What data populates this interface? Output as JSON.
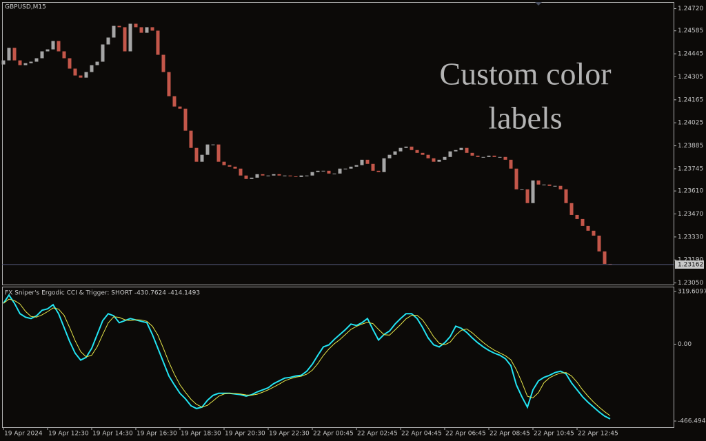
{
  "chart_data": [
    {
      "type": "candlestick",
      "title": "GBPUSD,M15",
      "annotation": [
        "Custom color",
        "labels"
      ],
      "up_color": "#a6a6a6",
      "down_color": "#c4574a",
      "categories": [
        "19 Apr 2024",
        null,
        null,
        null,
        null,
        null,
        null,
        null,
        "19 Apr 12:30",
        null,
        null,
        null,
        null,
        null,
        null,
        null,
        "19 Apr 14:30",
        null,
        null,
        null,
        null,
        null,
        null,
        null,
        "19 Apr 16:30",
        null,
        null,
        null,
        null,
        null,
        null,
        null,
        "19 Apr 18:30",
        null,
        null,
        null,
        null,
        null,
        null,
        null,
        "19 Apr 20:30",
        null,
        null,
        null,
        null,
        null,
        null,
        null,
        "19 Apr 22:30",
        null,
        null,
        null,
        null,
        null,
        null,
        null,
        "22 Apr 00:45",
        null,
        null,
        null,
        null,
        null,
        null,
        null,
        "22 Apr 02:45",
        null,
        null,
        null,
        null,
        null,
        null,
        null,
        "22 Apr 04:45",
        null,
        null,
        null,
        null,
        null,
        null,
        null,
        "22 Apr 06:45",
        null,
        null,
        null,
        null,
        null,
        null,
        null,
        "22 Apr 08:45",
        null,
        null,
        null,
        null,
        null,
        null,
        null,
        "22 Apr 10:45",
        null,
        null,
        null,
        null,
        null,
        null,
        null,
        "22 Apr 12:45",
        null,
        null,
        null,
        null,
        null,
        null
      ],
      "open": [
        1.2438,
        1.24405,
        1.24481,
        1.24405,
        1.24376,
        1.24388,
        1.24397,
        1.24418,
        1.2446,
        1.24472,
        1.24523,
        1.2446,
        1.24418,
        1.24355,
        1.24313,
        1.243,
        1.24334,
        1.24376,
        1.24397,
        1.24502,
        1.24544,
        1.24615,
        1.24607,
        1.2446,
        1.24628,
        1.24607,
        1.24573,
        1.24607,
        1.24586,
        1.24439,
        1.24334,
        1.24187,
        1.24124,
        1.24111,
        1.23977,
        1.23872,
        1.23788,
        1.2383,
        1.23893,
        1.23893,
        1.23788,
        1.23767,
        1.23758,
        1.23746,
        1.23704,
        1.23683,
        1.23691,
        1.23712,
        1.23704,
        1.23704,
        1.23712,
        1.23704,
        1.23704,
        1.23699,
        1.23695,
        1.23704,
        1.23704,
        1.23725,
        1.23733,
        1.23733,
        1.23716,
        1.23716,
        1.23746,
        1.23746,
        1.23758,
        1.23767,
        1.238,
        1.23775,
        1.23733,
        1.23725,
        1.23809,
        1.2383,
        1.23851,
        1.23872,
        1.2388,
        1.23859,
        1.23842,
        1.2383,
        1.23809,
        1.23788,
        1.238,
        1.23817,
        1.23851,
        1.23859,
        1.23872,
        1.23842,
        1.23825,
        1.23817,
        1.23817,
        1.23825,
        1.23817,
        1.23817,
        1.238,
        1.23746,
        1.2362,
        1.2362,
        1.23536,
        1.23674,
        1.23649,
        1.23649,
        1.23641,
        1.23641,
        1.2362,
        1.23536,
        1.23464,
        1.23439,
        1.23397,
        1.23368,
        1.23338,
        1.23242,
        1.23166
      ],
      "close": [
        1.24405,
        1.24481,
        1.24405,
        1.24376,
        1.24388,
        1.24397,
        1.24418,
        1.2446,
        1.24472,
        1.24523,
        1.2446,
        1.24418,
        1.24355,
        1.24313,
        1.243,
        1.24334,
        1.24376,
        1.24397,
        1.24502,
        1.24544,
        1.24615,
        1.24607,
        1.2446,
        1.24628,
        1.24607,
        1.24573,
        1.24607,
        1.24586,
        1.24439,
        1.24334,
        1.24187,
        1.24124,
        1.24111,
        1.23977,
        1.23872,
        1.23788,
        1.2383,
        1.23893,
        1.23893,
        1.23788,
        1.23767,
        1.23758,
        1.23746,
        1.23704,
        1.23683,
        1.23691,
        1.23712,
        1.23704,
        1.23704,
        1.23712,
        1.23704,
        1.23704,
        1.23699,
        1.23695,
        1.23704,
        1.23704,
        1.23725,
        1.23733,
        1.23733,
        1.23716,
        1.23716,
        1.23746,
        1.23746,
        1.23758,
        1.23767,
        1.238,
        1.23775,
        1.23733,
        1.23725,
        1.23809,
        1.2383,
        1.23851,
        1.23872,
        1.2388,
        1.23859,
        1.23842,
        1.2383,
        1.23809,
        1.23788,
        1.238,
        1.23817,
        1.23851,
        1.23859,
        1.23872,
        1.23842,
        1.23825,
        1.23817,
        1.23817,
        1.23825,
        1.23817,
        1.23817,
        1.238,
        1.23746,
        1.2362,
        1.2362,
        1.23536,
        1.23674,
        1.23649,
        1.23649,
        1.23641,
        1.23641,
        1.2362,
        1.23536,
        1.23464,
        1.23439,
        1.23397,
        1.23368,
        1.23338,
        1.23242,
        1.23166,
        1.23162
      ],
      "current_price": 1.23162,
      "ylim": [
        1.2304,
        1.2476
      ],
      "yticks": [
        {
          "value": 1.2472,
          "label": "1.24720"
        },
        1.24585,
        1.24445,
        1.24305,
        1.24165,
        1.24025,
        1.23885,
        1.23745,
        {
          "value": 1.2361,
          "label": "1.23610"
        },
        {
          "value": 1.2347,
          "label": "1.23470"
        },
        {
          "value": 1.2333,
          "label": "1.23330"
        },
        {
          "value": 1.2319,
          "label": "1.23190"
        },
        {
          "value": 1.2305,
          "label": "1.23050"
        }
      ]
    },
    {
      "type": "line",
      "title": "FX Sniper's Ergodic CCI & Trigger: SHORT -430.7624 -414.1493",
      "series": [
        {
          "color": "#22e4f2",
          "values": [
            247.8,
            298.2,
            247.8,
            184.8,
            163.8,
            155.4,
            172.2,
            205.8,
            214.2,
            239.4,
            184.8,
            100.8,
            16.8,
            -54.6,
            -96.6,
            -79.8,
            -25.2,
            58.8,
            142.8,
            184.8,
            172.2,
            130.2,
            142.8,
            155.4,
            147,
            138.6,
            130.2,
            58.8,
            -25.2,
            -109.2,
            -193.2,
            -247.8,
            -298.2,
            -331.8,
            -373.8,
            -390.6,
            -382.2,
            -340.2,
            -310.8,
            -298.2,
            -298.2,
            -298.2,
            -302.4,
            -306.6,
            -315,
            -306.6,
            -289.8,
            -277.2,
            -264.6,
            -239.4,
            -222.6,
            -205.8,
            -201.6,
            -193.2,
            -189,
            -163.8,
            -121.8,
            -67.2,
            -16.8,
            -4.2,
            29.4,
            58.8,
            88.2,
            121.8,
            113.4,
            130.2,
            155.4,
            88.2,
            25.2,
            58.8,
            79.8,
            121.8,
            155.4,
            184.8,
            184.8,
            155.4,
            100.8,
            37.8,
            -4.2,
            -16.8,
            8.4,
            46.2,
            109.2,
            96.6,
            71.4,
            37.8,
            8.4,
            -16.8,
            -37.8,
            -54.6,
            -67.2,
            -88.2,
            -130.2,
            -247.8,
            -319.2,
            -382.2,
            -277.2,
            -222.6,
            -201.6,
            -189,
            -172.2,
            -163.8,
            -180.6,
            -235.2,
            -277.2,
            -319.2,
            -352.8,
            -382.2,
            -411.6,
            -436.8,
            -453.6
          ]
        },
        {
          "color": "#e6e64a",
          "values": [
            247.8,
            273,
            264.6,
            243.6,
            198.8,
            168,
            163.8,
            177.8,
            197.4,
            219.8,
            212.8,
            175,
            100.8,
            21,
            -44.8,
            -77,
            -67.2,
            -15.4,
            58.8,
            128.8,
            166.6,
            162.4,
            148.4,
            142.8,
            148.4,
            147,
            138.6,
            109.2,
            54.6,
            -25.2,
            -109.2,
            -183.4,
            -246.4,
            -292.6,
            -334.6,
            -365.4,
            -382.2,
            -371,
            -344.4,
            -316.4,
            -302.4,
            -298.2,
            -299.6,
            -302.4,
            -308,
            -309.4,
            -303.8,
            -291.2,
            -277.2,
            -260.4,
            -242.2,
            -222.6,
            -210,
            -200.2,
            -194.6,
            -182,
            -158.2,
            -117.6,
            -68.6,
            -29.4,
            2.8,
            28,
            58.8,
            89.6,
            107.8,
            121.8,
            133,
            124.6,
            89.6,
            57.4,
            54.6,
            86.8,
            119,
            154,
            175,
            175,
            147,
            98,
            44.8,
            5.6,
            -4.2,
            12.6,
            54.6,
            84,
            92.4,
            68.6,
            39.2,
            9.8,
            -15.4,
            -36.4,
            -53.2,
            -70,
            -95.2,
            -155.4,
            -232.4,
            -316.4,
            -326.2,
            -294,
            -233.8,
            -204.4,
            -187.6,
            -175,
            -172.2,
            -193.2,
            -231,
            -277.2,
            -316.4,
            -351.4,
            -382.2,
            -410.2,
            -434
          ]
        }
      ],
      "ylim": [
        -504,
        349
      ],
      "yticks": [
        319.6097,
        {
          "value": 0,
          "label": "0.00"
        },
        -466.4944
      ]
    }
  ]
}
